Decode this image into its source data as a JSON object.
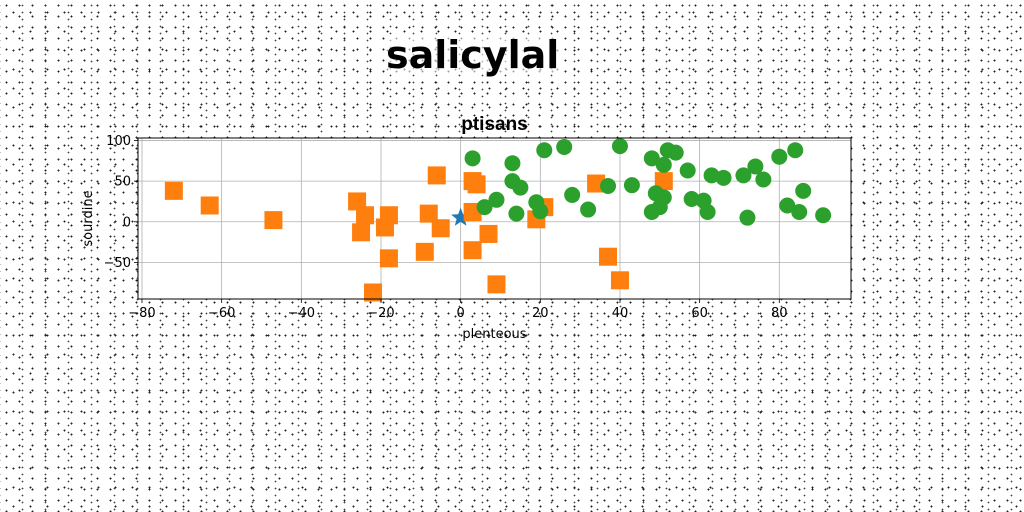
{
  "page": {
    "title": "salicylal"
  },
  "chart_data": {
    "type": "scatter",
    "title": "ptisans",
    "xlabel": "plenteous",
    "ylabel": "sourdine",
    "xlim": [
      -81,
      98
    ],
    "ylim": [
      -95,
      103
    ],
    "xticks": [
      -80,
      -60,
      -40,
      -20,
      0,
      20,
      40,
      60,
      80
    ],
    "yticks": [
      -50,
      0,
      50,
      100
    ],
    "grid": true,
    "series": [
      {
        "marker": "star",
        "color": "#1f77b4",
        "points": [
          [
            0,
            5
          ]
        ]
      },
      {
        "marker": "square",
        "color": "#ff7f0e",
        "points": [
          [
            -72,
            38
          ],
          [
            -63,
            20
          ],
          [
            -47,
            2
          ],
          [
            -26,
            25
          ],
          [
            -24,
            8
          ],
          [
            -25,
            -13
          ],
          [
            -22,
            -87
          ],
          [
            -19,
            -7
          ],
          [
            -18,
            8
          ],
          [
            -18,
            -45
          ],
          [
            -9,
            -37
          ],
          [
            -8,
            10
          ],
          [
            -6,
            57
          ],
          [
            -5,
            -8
          ],
          [
            3,
            12
          ],
          [
            3,
            -35
          ],
          [
            3,
            50
          ],
          [
            4,
            46
          ],
          [
            7,
            -15
          ],
          [
            9,
            -77
          ],
          [
            19,
            3
          ],
          [
            21,
            18
          ],
          [
            34,
            47
          ],
          [
            37,
            -43
          ],
          [
            40,
            -72
          ],
          [
            51,
            50
          ]
        ]
      },
      {
        "marker": "circle",
        "color": "#2ca02c",
        "points": [
          [
            3,
            78
          ],
          [
            6,
            18
          ],
          [
            9,
            27
          ],
          [
            13,
            72
          ],
          [
            13,
            50
          ],
          [
            14,
            10
          ],
          [
            15,
            42
          ],
          [
            19,
            24
          ],
          [
            20,
            13
          ],
          [
            21,
            88
          ],
          [
            26,
            92
          ],
          [
            28,
            33
          ],
          [
            32,
            15
          ],
          [
            37,
            44
          ],
          [
            40,
            93
          ],
          [
            43,
            45
          ],
          [
            48,
            78
          ],
          [
            48,
            12
          ],
          [
            49,
            35
          ],
          [
            50,
            18
          ],
          [
            51,
            30
          ],
          [
            51,
            70
          ],
          [
            52,
            88
          ],
          [
            54,
            85
          ],
          [
            57,
            63
          ],
          [
            58,
            28
          ],
          [
            61,
            26
          ],
          [
            62,
            12
          ],
          [
            63,
            57
          ],
          [
            66,
            54
          ],
          [
            71,
            57
          ],
          [
            72,
            5
          ],
          [
            74,
            68
          ],
          [
            76,
            52
          ],
          [
            80,
            80
          ],
          [
            82,
            20
          ],
          [
            84,
            88
          ],
          [
            85,
            12
          ],
          [
            86,
            38
          ],
          [
            91,
            8
          ]
        ]
      }
    ]
  }
}
